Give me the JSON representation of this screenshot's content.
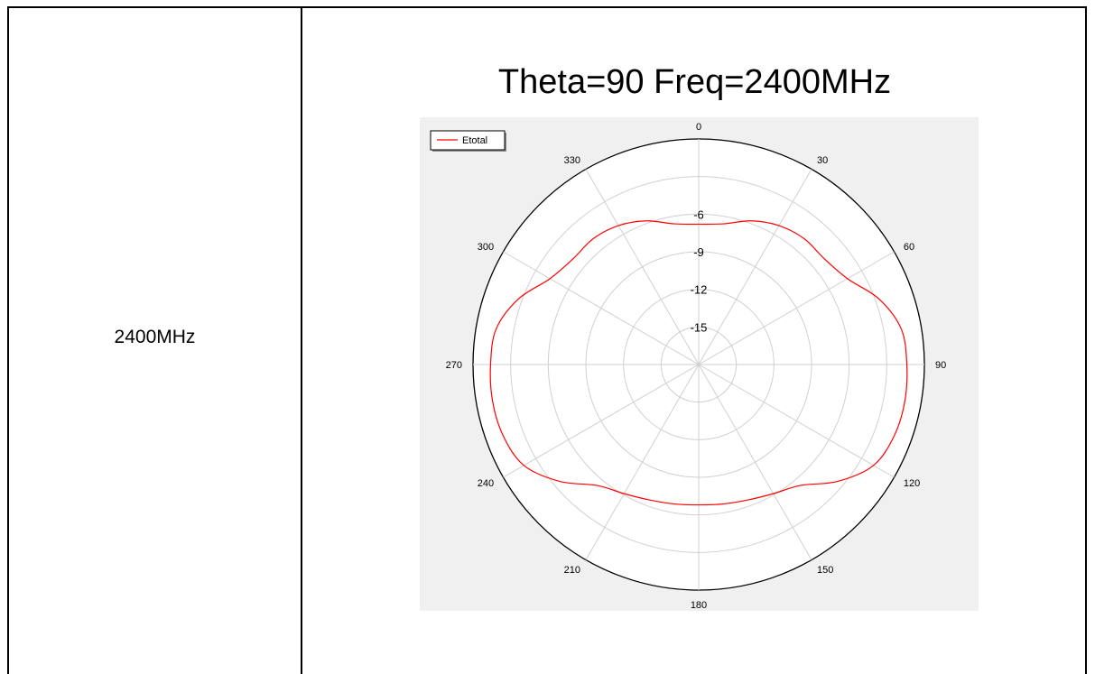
{
  "table": {
    "row_label": "2400MHz"
  },
  "chart_data": {
    "type": "polar-line",
    "title": "Theta=90 Freq=2400MHz",
    "legend": {
      "placement": "top-left",
      "entries": [
        "Etotal"
      ]
    },
    "angle_ticks": [
      "0",
      "30",
      "60",
      "90",
      "120",
      "150",
      "180",
      "210",
      "240",
      "270",
      "300",
      "330"
    ],
    "radial_ticks": [
      "-6",
      "-9",
      "-12",
      "-15"
    ],
    "rlim": [
      -18,
      0
    ],
    "grid": true,
    "series": [
      {
        "name": "Etotal",
        "color": "#ff0000",
        "angles_deg": [
          0,
          10,
          20,
          30,
          40,
          50,
          60,
          70,
          80,
          90,
          100,
          110,
          120,
          130,
          140,
          150,
          160,
          170,
          180,
          190,
          200,
          210,
          220,
          230,
          240,
          250,
          260,
          270,
          280,
          290,
          300,
          310,
          320,
          330,
          340,
          350
        ],
        "values_db": [
          -6.8,
          -6.6,
          -5.8,
          -5.2,
          -4.9,
          -4.9,
          -4.3,
          -2.7,
          -1.6,
          -1.4,
          -1.3,
          -1.4,
          -1.9,
          -3.5,
          -5.4,
          -6.1,
          -6.5,
          -6.7,
          -6.8,
          -6.7,
          -6.5,
          -6.1,
          -5.4,
          -3.5,
          -1.9,
          -1.4,
          -1.3,
          -1.4,
          -1.6,
          -2.7,
          -4.3,
          -4.9,
          -4.9,
          -5.2,
          -5.8,
          -6.6
        ]
      }
    ]
  },
  "colors": {
    "series": "#ff0000",
    "grid": "#d0d0d0",
    "chart_bg": "#f0f0f0"
  }
}
